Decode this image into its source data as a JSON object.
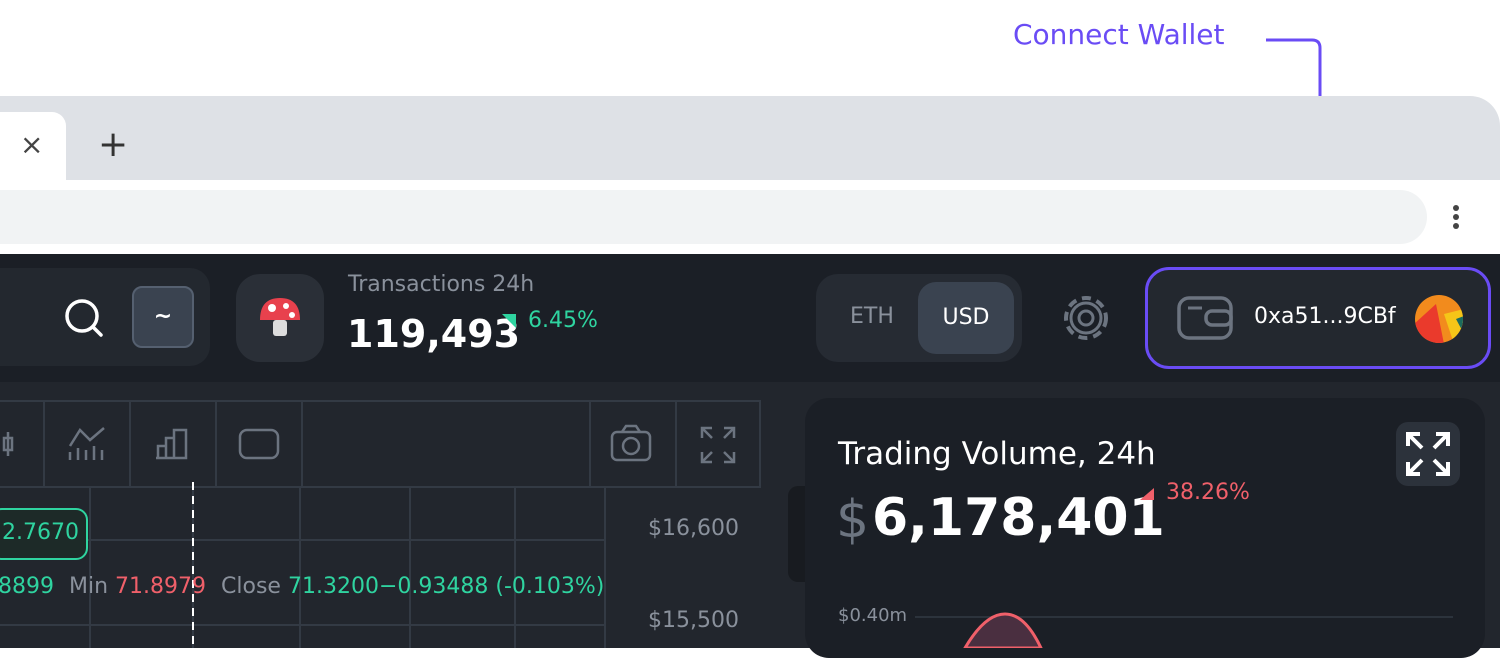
{
  "annotation": {
    "label": "Connect Wallet"
  },
  "header": {
    "search_key": "~",
    "transactions": {
      "label": "Transactions 24h",
      "value": "119,493",
      "change": "6.45%"
    },
    "currency_toggle": [
      "ETH",
      "USD"
    ],
    "wallet": {
      "address": "0xa51...9CBf"
    }
  },
  "chart_panel": {
    "price_tag": "2.7670",
    "ohlc": {
      "partial_value": "8899",
      "min_label": "Min",
      "min_value": "71.8979",
      "close_label": "Close",
      "close_value": "71.3200",
      "close_change": "−0.93488",
      "close_change_pct": "(-0.103%)"
    },
    "price_axis": [
      "$16,600",
      "$15,500"
    ]
  },
  "volume_card": {
    "title": "Trading Volume, 24h",
    "currency": "$",
    "value": "6,178,401",
    "change": "38.26%",
    "axis_label": "$0.40m"
  }
}
